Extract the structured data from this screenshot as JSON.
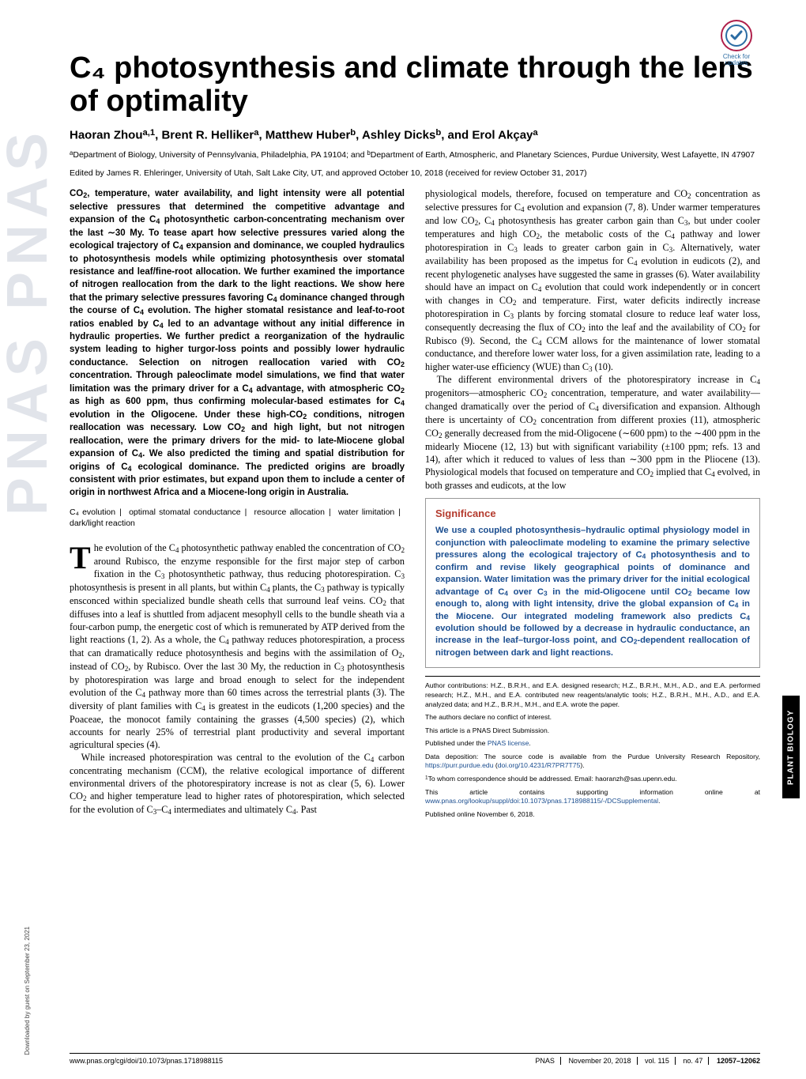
{
  "badge": {
    "label": "Check for updates"
  },
  "pnas_ghost": "PNAS PNAS",
  "download_tag": "Downloaded by guest on September 23, 2021",
  "side_tab": "PLANT BIOLOGY",
  "title": "C₄ photosynthesis and climate through the lens of optimality",
  "authors_html": "Haoran Zhou<sup>a,1</sup>, Brent R. Helliker<sup>a</sup>, Matthew Huber<sup>b</sup>, Ashley Dicks<sup>b</sup>, and Erol Akçay<sup>a</sup>",
  "affil_html": "<sup>a</sup>Department of Biology, University of Pennsylvania, Philadelphia, PA 19104; and <sup>b</sup>Department of Earth, Atmospheric, and Planetary Sciences, Purdue University, West Lafayette, IN 47907",
  "edited": "Edited by James R. Ehleringer, University of Utah, Salt Lake City, UT, and approved October 10, 2018 (received for review October 31, 2017)",
  "abstract_html": "CO<sub>2</sub>, temperature, water availability, and light intensity were all potential selective pressures that determined the competitive advantage and expansion of the C<sub>4</sub> photosynthetic carbon-concentrating mechanism over the last ∼30 My. To tease apart how selective pressures varied along the ecological trajectory of C<sub>4</sub> expansion and dominance, we coupled hydraulics to photosynthesis models while optimizing photosynthesis over stomatal resistance and leaf/fine-root allocation. We further examined the importance of nitrogen reallocation from the dark to the light reactions. We show here that the primary selective pressures favoring C<sub>4</sub> dominance changed through the course of C<sub>4</sub> evolution. The higher stomatal resistance and leaf-to-root ratios enabled by C<sub>4</sub> led to an advantage without any initial difference in hydraulic properties. We further predict a reorganization of the hydraulic system leading to higher turgor-loss points and possibly lower hydraulic conductance. Selection on nitrogen reallocation varied with CO<sub>2</sub> concentration. Through paleoclimate model simulations, we find that water limitation was the primary driver for a C<sub>4</sub> advantage, with atmospheric CO<sub>2</sub> as high as 600 ppm, thus confirming molecular-based estimates for C<sub>4</sub> evolution in the Oligocene. Under these high-CO<sub>2</sub> conditions, nitrogen reallocation was necessary. Low CO<sub>2</sub> and high light, but not nitrogen reallocation, were the primary drivers for the mid- to late-Miocene global expansion of C<sub>4</sub>. We also predicted the timing and spatial distribution for origins of C<sub>4</sub> ecological dominance. The predicted origins are broadly consistent with prior estimates, but expand upon them to include a center of origin in northwest Africa and a Miocene-long origin in Australia.",
  "keywords": [
    "C₄ evolution",
    "optimal stomatal conductance",
    "resource allocation",
    "water limitation",
    "dark/light reaction"
  ],
  "left_intro_html": "<span class=\"dropcap\">T</span>he evolution of the C<sub>4</sub> photosynthetic pathway enabled the concentration of CO<sub>2</sub> around Rubisco, the enzyme responsible for the first major step of carbon fixation in the C<sub>3</sub> photosynthetic pathway, thus reducing photorespiration. C<sub>3</sub> photosynthesis is present in all plants, but within C<sub>4</sub> plants, the C<sub>3</sub> pathway is typically ensconced within specialized bundle sheath cells that surround leaf veins. CO<sub>2</sub> that diffuses into a leaf is shuttled from adjacent mesophyll cells to the bundle sheath via a four-carbon pump, the energetic cost of which is remunerated by ATP derived from the light reactions (1, 2). As a whole, the C<sub>4</sub> pathway reduces photorespiration, a process that can dramatically reduce photosynthesis and begins with the assimilation of O<sub>2</sub>, instead of CO<sub>2</sub>, by Rubisco. Over the last 30 My, the reduction in C<sub>3</sub> photosynthesis by photorespiration was large and broad enough to select for the independent evolution of the C<sub>4</sub> pathway more than 60 times across the terrestrial plants (3). The diversity of plant families with C<sub>4</sub> is greatest in the eudicots (1,200 species) and the Poaceae, the monocot family containing the grasses (4,500 species) (2), which accounts for nearly 25% of terrestrial plant productivity and several important agricultural species (4).",
  "left_para2_html": "While increased photorespiration was central to the evolution of the C<sub>4</sub> carbon concentrating mechanism (CCM), the relative ecological importance of different environmental drivers of the photorespiratory increase is not as clear (5, 6). Lower CO<sub>2</sub> and higher temperature lead to higher rates of photorespiration, which selected for the evolution of C<sub>3</sub>–C<sub>4</sub> intermediates and ultimately C<sub>4</sub>. Past",
  "right_para1_html": "physiological models, therefore, focused on temperature and CO<sub>2</sub> concentration as selective pressures for C<sub>4</sub> evolution and expansion (7, 8). Under warmer temperatures and low CO<sub>2</sub>, C<sub>4</sub> photosynthesis has greater carbon gain than C<sub>3</sub>, but under cooler temperatures and high CO<sub>2</sub>, the metabolic costs of the C<sub>4</sub> pathway and lower photorespiration in C<sub>3</sub> leads to greater carbon gain in C<sub>3</sub>. Alternatively, water availability has been proposed as the impetus for C<sub>4</sub> evolution in eudicots (2), and recent phylogenetic analyses have suggested the same in grasses (6). Water availability should have an impact on C<sub>4</sub> evolution that could work independently or in concert with changes in CO<sub>2</sub> and temperature. First, water deficits indirectly increase photorespiration in C<sub>3</sub> plants by forcing stomatal closure to reduce leaf water loss, consequently decreasing the flux of CO<sub>2</sub> into the leaf and the availability of CO<sub>2</sub> for Rubisco (9). Second, the C<sub>4</sub> CCM allows for the maintenance of lower stomatal conductance, and therefore lower water loss, for a given assimilation rate, leading to a higher water-use efficiency (WUE) than C<sub>3</sub> (10).",
  "right_para2_html": "The different environmental drivers of the photorespiratory increase in C<sub>4</sub> progenitors—atmospheric CO<sub>2</sub> concentration, temperature, and water availability—changed dramatically over the period of C<sub>4</sub> diversification and expansion. Although there is uncertainty of CO<sub>2</sub> concentration from different proxies (11), atmospheric CO<sub>2</sub> generally decreased from the mid-Oligocene (∼600 ppm) to the ∼400 ppm in the midearly Miocene (12, 13) but with significant variability (±100 ppm; refs. 13 and 14), after which it reduced to values of less than ∼300 ppm in the Pliocene (13). Physiological models that focused on temperature and CO<sub>2</sub> implied that C<sub>4</sub> evolved, in both grasses and eudicots, at the low",
  "significance": {
    "heading": "Significance",
    "text_html": "We use a coupled photosynthesis–hydraulic optimal physiology model in conjunction with paleoclimate modeling to examine the primary selective pressures along the ecological trajectory of C<sub>4</sub> photosynthesis and to confirm and revise likely geographical points of dominance and expansion. Water limitation was the primary driver for the initial ecological advantage of C<sub>4</sub> over C<sub>3</sub> in the mid-Oligocene until CO<sub>2</sub> became low enough to, along with light intensity, drive the global expansion of C<sub>4</sub> in the Miocene. Our integrated modeling framework also predicts C<sub>4</sub> evolution should be followed by a decrease in hydraulic conductance, an increase in the leaf–turgor-loss point, and CO<sub>2</sub>-dependent reallocation of nitrogen between dark and light reactions."
  },
  "smallprint": {
    "contrib": "Author contributions: H.Z., B.R.H., and E.A. designed research; H.Z., B.R.H., M.H., A.D., and E.A. performed research; H.Z., M.H., and E.A. contributed new reagents/analytic tools; H.Z., B.R.H., M.H., A.D., and E.A. analyzed data; and H.Z., B.R.H., M.H., and E.A. wrote the paper.",
    "conflict": "The authors declare no conflict of interest.",
    "direct": "This article is a PNAS Direct Submission.",
    "license_html": "Published under the <a href=\"#\">PNAS license</a>.",
    "data_html": "Data deposition: The source code is available from the Purdue University Research Repository, <a href=\"#\">https://purr.purdue.edu</a> (<a href=\"#\">doi.org/10.4231/R7PR7T75</a>).",
    "corresp_html": "<sup>1</sup>To whom correspondence should be addressed. Email: haoranzh@sas.upenn.edu.",
    "si_html": "This article contains supporting information online at <a href=\"#\">www.pnas.org/lookup/suppl/doi:10.1073/pnas.1718988115/-/DCSupplemental</a>.",
    "pubdate": "Published online November 6, 2018."
  },
  "footer": {
    "left": "www.pnas.org/cgi/doi/10.1073/pnas.1718988115",
    "journal": "PNAS",
    "date": "November 20, 2018",
    "vol": "vol. 115",
    "no": "no. 47",
    "pages": "12057–12062"
  },
  "colors": {
    "sig_heading": "#b43b2e",
    "sig_text": "#1a4d8f",
    "link": "#1a4d8f",
    "ghost": "rgba(120,130,160,0.22)",
    "badge": "#2b6ca3"
  }
}
